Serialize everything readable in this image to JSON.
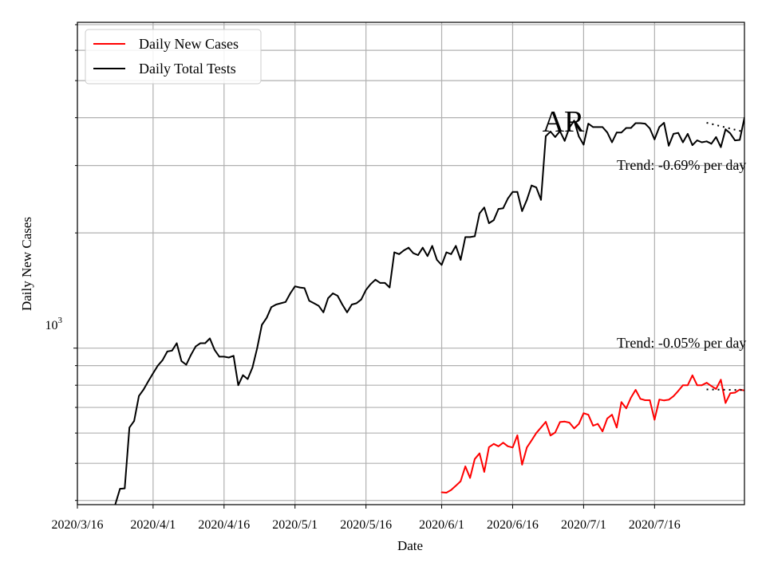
{
  "chart_data": {
    "type": "line",
    "title": "",
    "annotation_label": "AR",
    "xlabel": "Date",
    "ylabel": "Daily New Cases",
    "y_scale": "log",
    "ylim": [
      390,
      7100
    ],
    "xlim": [
      "2020-03-16",
      "2020-08-04"
    ],
    "x_ticks": [
      "2020/3/16",
      "2020/4/1",
      "2020/4/16",
      "2020/5/1",
      "2020/5/16",
      "2020/6/1",
      "2020/6/16",
      "2020/7/1",
      "2020/7/16"
    ],
    "y_tick_label": {
      "base": "10",
      "exponent": "3",
      "value": 1000
    },
    "grid": true,
    "legend_position": "upper-left",
    "colors": {
      "cases": "#ff0000",
      "tests": "#000000"
    },
    "series": [
      {
        "name": "Daily New Cases",
        "color": "#ff0000",
        "start_date": "2020-06-01",
        "values": [
          420,
          419,
          426,
          437,
          449,
          491,
          458,
          513,
          531,
          475,
          551,
          562,
          554,
          566,
          554,
          550,
          592,
          496,
          550,
          574,
          600,
          620,
          642,
          591,
          602,
          641,
          643,
          639,
          617,
          634,
          676,
          670,
          627,
          634,
          606,
          655,
          670,
          620,
          723,
          696,
          742,
          778,
          737,
          731,
          731,
          650,
          734,
          730,
          733,
          749,
          773,
          800,
          800,
          849,
          800,
          800,
          812,
          796,
          782,
          827,
          719,
          762,
          765,
          779,
          775,
          793,
          749,
          848,
          787,
          788,
          771,
          771
        ]
      },
      {
        "name": "Daily Total Tests",
        "color": "#000000",
        "start_date": "2020-03-24",
        "values": [
          390,
          429,
          430,
          620,
          645,
          750,
          780,
          820,
          860,
          900,
          930,
          980,
          985,
          1030,
          925,
          905,
          960,
          1010,
          1030,
          1030,
          1060,
          990,
          950,
          950,
          945,
          955,
          800,
          850,
          830,
          890,
          1000,
          1150,
          1200,
          1280,
          1300,
          1310,
          1320,
          1390,
          1450,
          1440,
          1435,
          1330,
          1310,
          1290,
          1240,
          1350,
          1390,
          1370,
          1300,
          1240,
          1300,
          1310,
          1340,
          1420,
          1470,
          1510,
          1480,
          1480,
          1440,
          1780,
          1760,
          1800,
          1830,
          1770,
          1750,
          1830,
          1740,
          1850,
          1700,
          1650,
          1780,
          1760,
          1850,
          1700,
          1950,
          1950,
          1960,
          2250,
          2330,
          2120,
          2160,
          2310,
          2320,
          2460,
          2560,
          2560,
          2280,
          2440,
          2660,
          2630,
          2440,
          3580,
          3680,
          3560,
          3690,
          3480,
          3770,
          3930,
          3570,
          3400,
          3860,
          3780,
          3780,
          3780,
          3660,
          3450,
          3660,
          3660,
          3760,
          3760,
          3870,
          3870,
          3860,
          3750,
          3510,
          3780,
          3880,
          3380,
          3630,
          3650,
          3450,
          3630,
          3390,
          3490,
          3450,
          3470,
          3420,
          3560,
          3350,
          3730,
          3640,
          3490,
          3500,
          4000,
          3870,
          3870,
          3650,
          3650,
          3650,
          3490,
          3700,
          3650,
          3650,
          3860,
          3600,
          3610,
          3620,
          3490,
          3550,
          3560,
          3650
        ]
      }
    ],
    "trend_lines": [
      {
        "series": "Daily New Cases",
        "label": "Trend: -0.05% per day",
        "start_date": "2020-07-27",
        "end_date": "2020-08-04",
        "start_value": 780,
        "end_value": 777
      },
      {
        "series": "Daily Total Tests",
        "label": "Trend: -0.69% per day",
        "start_date": "2020-07-27",
        "end_date": "2020-08-04",
        "start_value": 3880,
        "end_value": 3670
      }
    ]
  }
}
